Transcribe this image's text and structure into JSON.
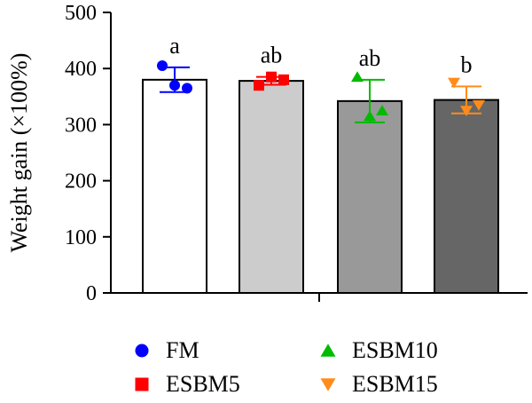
{
  "chart_data": {
    "type": "bar",
    "ylabel": "Weight gain (×100%)",
    "ylim": [
      0,
      500
    ],
    "yticks": [
      0,
      100,
      200,
      300,
      400,
      500
    ],
    "categories": [
      "FM",
      "ESBM5",
      "ESBM10",
      "ESBM15"
    ],
    "values": [
      380,
      378,
      342,
      344
    ],
    "error": [
      22,
      7,
      38,
      24
    ],
    "significance": [
      "a",
      "ab",
      "ab",
      "b"
    ],
    "bar_fill": [
      "#ffffff",
      "#cccccc",
      "#999999",
      "#666666"
    ],
    "series_color": [
      "#0000ff",
      "#ff0000",
      "#00bb00",
      "#ff8c1a"
    ],
    "markers": [
      "circle",
      "square",
      "triangle-up",
      "triangle-down"
    ],
    "points": [
      [
        405,
        370,
        365
      ],
      [
        370,
        385,
        380
      ],
      [
        385,
        315,
        325
      ],
      [
        375,
        325,
        335
      ]
    ],
    "legend": {
      "placement": "bottom",
      "items": [
        "FM",
        "ESBM10",
        "ESBM5",
        "ESBM15"
      ]
    },
    "grid": false
  }
}
